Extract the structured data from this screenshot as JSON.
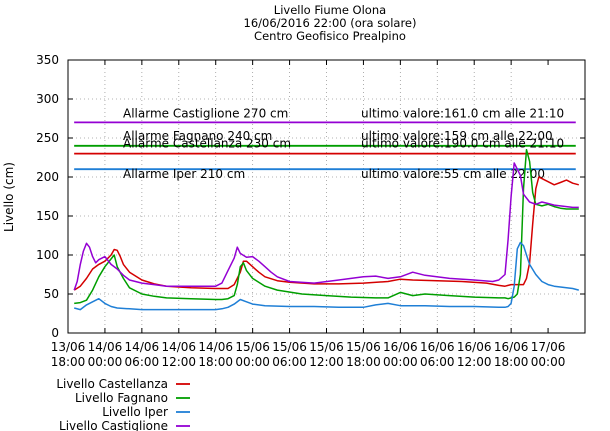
{
  "chart_data": {
    "type": "line",
    "title": [
      "Livello Fiume Olona",
      "16/06/2016 22:00 (ora solare)",
      "Centro Geofisico Prealpino"
    ],
    "ylabel": "Livello (cm)",
    "xlabel": "",
    "ylim": [
      0,
      350
    ],
    "yticks": [
      0,
      50,
      100,
      150,
      200,
      250,
      300,
      350
    ],
    "xlim": [
      "13/06 18:00",
      "17/06 00:00"
    ],
    "xticks": [
      [
        "13/06",
        "18:00"
      ],
      [
        "14/06",
        "00:00"
      ],
      [
        "14/06",
        "06:00"
      ],
      [
        "14/06",
        "12:00"
      ],
      [
        "14/06",
        "18:00"
      ],
      [
        "15/06",
        "00:00"
      ],
      [
        "15/06",
        "06:00"
      ],
      [
        "15/06",
        "12:00"
      ],
      [
        "15/06",
        "18:00"
      ],
      [
        "16/06",
        "00:00"
      ],
      [
        "16/06",
        "06:00"
      ],
      [
        "16/06",
        "12:00"
      ],
      [
        "16/06",
        "18:00"
      ],
      [
        "17/06",
        "00:00"
      ]
    ],
    "grid": true,
    "legend_position": "bottom-left",
    "thresholds": [
      {
        "label": "Allarme Castiglione 270 cm",
        "last": "ultimo valore:161.0 cm alle 21:10",
        "value": 270,
        "color": "#9400d3"
      },
      {
        "label": "Allarme Fagnano 240 cm",
        "last": "ultimo valore:159 cm alle 22:00",
        "value": 240,
        "color": "#009e00"
      },
      {
        "label": "Allarme Castellanza 230 cm",
        "last": "ultimo valore:190.0 cm alle 21:10",
        "value": 230,
        "color": "#d40000"
      },
      {
        "label": "Allarme Iper 210 cm",
        "last": "ultimo valore:55 cm alle 22:00",
        "value": 210,
        "color": "#1f7fd6"
      }
    ],
    "series": [
      {
        "name": "Livello Castellanza",
        "color": "#d40000",
        "x": [
          -5.0,
          -4.0,
          -3.0,
          -2.0,
          -1.0,
          0.0,
          1.0,
          1.5,
          2.0,
          2.5,
          3.0,
          4.0,
          6.0,
          8.0,
          10.0,
          14.0,
          18.0,
          20.0,
          21.0,
          22.0,
          22.5,
          23.0,
          24.0,
          25.0,
          26.0,
          28.0,
          30.0,
          34.0,
          38.0,
          42.0,
          46.0,
          48.0,
          50.0,
          54.0,
          58.0,
          62.0,
          64.0,
          65.0,
          65.5,
          66.0,
          66.5,
          67.0,
          67.5,
          68.0,
          68.5,
          69.0,
          69.5,
          70.0,
          70.5,
          71.0,
          72.0,
          73.0,
          74.0,
          75.0,
          76.0,
          77.0
        ],
        "y": [
          55,
          60,
          70,
          82,
          88,
          92,
          100,
          107,
          106,
          98,
          88,
          78,
          68,
          63,
          60,
          58,
          57,
          57,
          62,
          78,
          92,
          92,
          85,
          78,
          72,
          67,
          65,
          63,
          63,
          64,
          66,
          69,
          68,
          67,
          66,
          64,
          61,
          60,
          61,
          62,
          62,
          62,
          62,
          62,
          70,
          90,
          140,
          185,
          200,
          198,
          194,
          190,
          193,
          196,
          192,
          190
        ]
      },
      {
        "name": "Livello Fagnano",
        "color": "#009e00",
        "x": [
          -5.0,
          -4.0,
          -3.0,
          -2.0,
          -1.0,
          0.0,
          0.5,
          1.0,
          1.5,
          2.0,
          3.0,
          4.0,
          6.0,
          8.0,
          10.0,
          14.0,
          18.0,
          19.0,
          20.0,
          21.0,
          21.5,
          22.0,
          22.5,
          23.0,
          24.0,
          26.0,
          28.0,
          32.0,
          36.0,
          40.0,
          44.0,
          46.0,
          48.0,
          50.0,
          52.0,
          56.0,
          60.0,
          64.0,
          65.0,
          65.5,
          66.0,
          66.5,
          67.0,
          67.5,
          68.0,
          68.5,
          69.0,
          69.5,
          70.0,
          71.0,
          72.0,
          73.0,
          74.0,
          75.0,
          76.0,
          77.0
        ],
        "y": [
          38,
          39,
          42,
          55,
          72,
          85,
          90,
          95,
          100,
          85,
          70,
          58,
          50,
          47,
          45,
          44,
          43,
          43,
          44,
          48,
          62,
          85,
          90,
          80,
          70,
          60,
          55,
          50,
          48,
          46,
          45,
          45,
          52,
          48,
          50,
          48,
          46,
          45,
          45,
          44,
          45,
          46,
          50,
          75,
          185,
          235,
          220,
          180,
          165,
          163,
          165,
          162,
          160,
          159,
          159,
          159
        ]
      },
      {
        "name": "Livello Iper",
        "color": "#1f7fd6",
        "x": [
          -5.0,
          -4.0,
          -3.0,
          -2.0,
          -1.0,
          0.0,
          1.0,
          2.0,
          4.0,
          6.0,
          8.0,
          12.0,
          16.0,
          18.0,
          19.0,
          20.0,
          21.0,
          22.0,
          23.0,
          24.0,
          26.0,
          30.0,
          34.0,
          38.0,
          42.0,
          44.0,
          46.0,
          48.0,
          52.0,
          56.0,
          60.0,
          64.0,
          65.0,
          65.5,
          66.0,
          66.5,
          67.0,
          67.5,
          68.0,
          68.5,
          69.0,
          70.0,
          71.0,
          72.0,
          73.0,
          74.0,
          75.0,
          76.0,
          77.0
        ],
        "y": [
          32,
          30,
          36,
          40,
          44,
          38,
          34,
          32,
          31,
          30,
          30,
          30,
          30,
          30,
          31,
          33,
          37,
          43,
          40,
          37,
          35,
          34,
          34,
          33,
          33,
          36,
          38,
          35,
          35,
          34,
          34,
          33,
          33,
          34,
          38,
          60,
          108,
          116,
          112,
          100,
          88,
          75,
          66,
          62,
          60,
          59,
          58,
          57,
          55
        ]
      },
      {
        "name": "Livello Castiglione",
        "color": "#9400d3",
        "x": [
          -5.0,
          -4.5,
          -4.0,
          -3.5,
          -3.0,
          -2.5,
          -2.0,
          -1.5,
          -1.0,
          0.0,
          1.0,
          2.0,
          3.0,
          4.0,
          6.0,
          8.0,
          10.0,
          14.0,
          18.0,
          19.0,
          20.0,
          21.0,
          21.5,
          22.0,
          23.0,
          24.0,
          25.0,
          26.0,
          27.0,
          28.0,
          30.0,
          34.0,
          38.0,
          42.0,
          44.0,
          46.0,
          48.0,
          50.0,
          52.0,
          56.0,
          60.0,
          63.0,
          64.0,
          65.0,
          65.5,
          66.0,
          66.5,
          67.0,
          67.5,
          68.0,
          69.0,
          70.0,
          71.0,
          72.0,
          73.0,
          74.0,
          75.0,
          76.0,
          77.0
        ],
        "y": [
          55,
          66,
          88,
          105,
          115,
          110,
          98,
          90,
          94,
          98,
          88,
          82,
          74,
          68,
          64,
          62,
          60,
          60,
          60,
          64,
          80,
          96,
          110,
          102,
          97,
          98,
          92,
          85,
          78,
          72,
          66,
          64,
          68,
          72,
          73,
          70,
          72,
          78,
          74,
          70,
          68,
          66,
          68,
          75,
          120,
          175,
          218,
          210,
          202,
          178,
          168,
          165,
          168,
          166,
          164,
          163,
          162,
          161,
          161
        ]
      }
    ]
  }
}
